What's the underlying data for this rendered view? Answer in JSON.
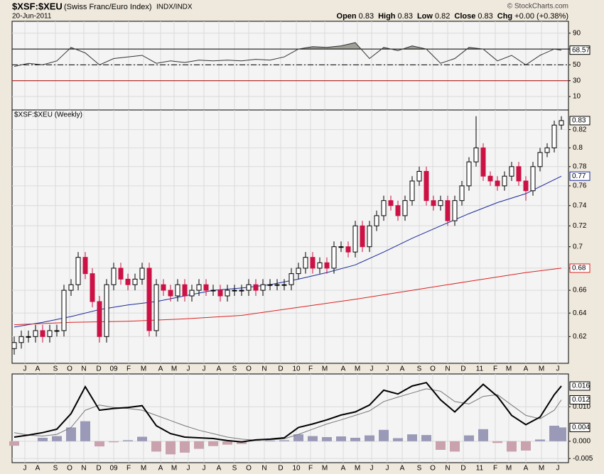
{
  "header": {
    "symbol": "$XSF:$XEU",
    "name": "(Swiss Franc/Euro Index)",
    "exchange": "INDX/INDX",
    "copyright": "© StockCharts.com",
    "date": "20-Jun-2011",
    "quote": [
      {
        "label": "Open",
        "value": "0.83"
      },
      {
        "label": "High",
        "value": "0.83"
      },
      {
        "label": "Low",
        "value": "0.82"
      },
      {
        "label": "Close",
        "value": "0.83"
      },
      {
        "label": "Chg",
        "value": "+0.00 (+0.38%)"
      }
    ]
  },
  "chart_data": [
    {
      "type": "line",
      "color": "#333333",
      "fill_color": "#8a8a80",
      "x": [
        0,
        2,
        4,
        6,
        8,
        10,
        12,
        14,
        16,
        18,
        20,
        22,
        24,
        26,
        28,
        30,
        32,
        34,
        36,
        38,
        40,
        42,
        44,
        46,
        48,
        50,
        52,
        54,
        56,
        58,
        60,
        62,
        64,
        66,
        68,
        70,
        72,
        74,
        76,
        77
      ],
      "values": [
        48,
        52,
        50,
        55,
        72,
        65,
        50,
        58,
        60,
        62,
        52,
        55,
        53,
        56,
        55,
        56,
        55,
        57,
        56,
        60,
        70,
        73,
        72,
        74,
        78,
        58,
        72,
        68,
        74,
        70,
        52,
        58,
        72,
        70,
        55,
        62,
        50,
        62,
        70,
        68.57
      ],
      "xlim": [
        -0.3,
        78
      ],
      "ylim": [
        -7,
        105
      ],
      "yticks": [
        10,
        30,
        50,
        70,
        90
      ],
      "levels": [
        {
          "value": 70,
          "color": "#000000",
          "style": "solid"
        },
        {
          "value": 50,
          "color": "#000000",
          "style": "dashdot"
        },
        {
          "value": 30,
          "color": "#aa0000",
          "style": "solid"
        }
      ]
    },
    {
      "type": "candlestick",
      "title": "$XSF:$XEU (Weekly)",
      "log_scale": true,
      "up_color": "#000000",
      "down_color": "#cc1144",
      "x": [
        0,
        1,
        2,
        3,
        4,
        5,
        6,
        7,
        8,
        9,
        10,
        11,
        12,
        13,
        14,
        15,
        16,
        17,
        18,
        19,
        20,
        21,
        22,
        23,
        24,
        25,
        26,
        27,
        28,
        29,
        30,
        31,
        32,
        33,
        34,
        35,
        36,
        37,
        38,
        39,
        40,
        41,
        42,
        43,
        44,
        45,
        46,
        47,
        48,
        49,
        50,
        51,
        52,
        53,
        54,
        55,
        56,
        57,
        58,
        59,
        60,
        61,
        62,
        63,
        64,
        65,
        66,
        67,
        68,
        69,
        70,
        71,
        72,
        73,
        74,
        75,
        76,
        77
      ],
      "open": [
        0.61,
        0.615,
        0.62,
        0.62,
        0.625,
        0.62,
        0.625,
        0.625,
        0.66,
        0.665,
        0.69,
        0.675,
        0.65,
        0.62,
        0.665,
        0.68,
        0.67,
        0.665,
        0.67,
        0.68,
        0.625,
        0.665,
        0.66,
        0.655,
        0.665,
        0.655,
        0.66,
        0.665,
        0.66,
        0.66,
        0.655,
        0.66,
        0.66,
        0.66,
        0.665,
        0.66,
        0.665,
        0.665,
        0.665,
        0.665,
        0.675,
        0.68,
        0.69,
        0.68,
        0.685,
        0.68,
        0.7,
        0.7,
        0.695,
        0.72,
        0.7,
        0.72,
        0.73,
        0.745,
        0.74,
        0.73,
        0.745,
        0.765,
        0.775,
        0.745,
        0.74,
        0.745,
        0.725,
        0.745,
        0.76,
        0.785,
        0.8,
        0.77,
        0.765,
        0.76,
        0.77,
        0.78,
        0.765,
        0.755,
        0.78,
        0.795,
        0.8,
        0.825
      ],
      "high": [
        0.62,
        0.625,
        0.625,
        0.63,
        0.63,
        0.63,
        0.63,
        0.665,
        0.67,
        0.695,
        0.695,
        0.68,
        0.655,
        0.67,
        0.685,
        0.685,
        0.675,
        0.675,
        0.685,
        0.685,
        0.67,
        0.67,
        0.665,
        0.67,
        0.67,
        0.665,
        0.67,
        0.67,
        0.665,
        0.665,
        0.665,
        0.665,
        0.665,
        0.67,
        0.67,
        0.67,
        0.67,
        0.67,
        0.67,
        0.68,
        0.685,
        0.695,
        0.695,
        0.69,
        0.69,
        0.705,
        0.705,
        0.705,
        0.725,
        0.725,
        0.725,
        0.735,
        0.75,
        0.75,
        0.745,
        0.75,
        0.77,
        0.78,
        0.78,
        0.75,
        0.75,
        0.75,
        0.75,
        0.765,
        0.79,
        0.835,
        0.805,
        0.775,
        0.77,
        0.775,
        0.785,
        0.785,
        0.77,
        0.785,
        0.8,
        0.805,
        0.83,
        0.835
      ],
      "low": [
        0.605,
        0.61,
        0.615,
        0.615,
        0.615,
        0.615,
        0.62,
        0.62,
        0.655,
        0.66,
        0.67,
        0.645,
        0.615,
        0.615,
        0.66,
        0.665,
        0.66,
        0.66,
        0.665,
        0.62,
        0.62,
        0.655,
        0.65,
        0.65,
        0.65,
        0.65,
        0.655,
        0.655,
        0.655,
        0.65,
        0.65,
        0.655,
        0.655,
        0.655,
        0.655,
        0.655,
        0.66,
        0.66,
        0.66,
        0.66,
        0.67,
        0.675,
        0.675,
        0.675,
        0.675,
        0.675,
        0.695,
        0.69,
        0.69,
        0.695,
        0.695,
        0.715,
        0.725,
        0.735,
        0.725,
        0.725,
        0.74,
        0.76,
        0.74,
        0.735,
        0.735,
        0.72,
        0.72,
        0.74,
        0.755,
        0.78,
        0.765,
        0.76,
        0.755,
        0.755,
        0.765,
        0.76,
        0.745,
        0.75,
        0.775,
        0.79,
        0.795,
        0.82
      ],
      "close": [
        0.615,
        0.62,
        0.62,
        0.625,
        0.62,
        0.625,
        0.625,
        0.66,
        0.665,
        0.69,
        0.675,
        0.65,
        0.62,
        0.665,
        0.68,
        0.67,
        0.665,
        0.67,
        0.68,
        0.625,
        0.665,
        0.66,
        0.655,
        0.665,
        0.655,
        0.66,
        0.665,
        0.66,
        0.66,
        0.655,
        0.66,
        0.66,
        0.66,
        0.665,
        0.66,
        0.665,
        0.665,
        0.665,
        0.665,
        0.675,
        0.68,
        0.69,
        0.68,
        0.685,
        0.68,
        0.7,
        0.7,
        0.695,
        0.72,
        0.7,
        0.72,
        0.73,
        0.745,
        0.74,
        0.73,
        0.745,
        0.765,
        0.775,
        0.745,
        0.74,
        0.745,
        0.725,
        0.745,
        0.76,
        0.785,
        0.8,
        0.77,
        0.765,
        0.76,
        0.77,
        0.78,
        0.765,
        0.755,
        0.78,
        0.795,
        0.8,
        0.825,
        0.83
      ],
      "series": [
        {
          "color": "#1a2a9a",
          "x": [
            0,
            4,
            8,
            12,
            16,
            20,
            24,
            28,
            32,
            36,
            40,
            44,
            48,
            52,
            56,
            60,
            64,
            68,
            72,
            77
          ],
          "values": [
            0.628,
            0.632,
            0.637,
            0.643,
            0.647,
            0.65,
            0.655,
            0.66,
            0.662,
            0.665,
            0.67,
            0.676,
            0.683,
            0.695,
            0.708,
            0.72,
            0.732,
            0.743,
            0.752,
            0.77
          ]
        },
        {
          "color": "#dd2222",
          "x": [
            0,
            8,
            16,
            24,
            32,
            40,
            48,
            56,
            64,
            72,
            77
          ],
          "values": [
            0.63,
            0.632,
            0.633,
            0.635,
            0.638,
            0.645,
            0.652,
            0.66,
            0.668,
            0.676,
            0.68
          ]
        }
      ],
      "xlim": [
        -0.3,
        78
      ],
      "ylim": [
        0.598,
        0.842
      ],
      "yticks": [
        0.62,
        0.64,
        0.66,
        0.68,
        0.7,
        0.72,
        0.74,
        0.76,
        0.78,
        0.8,
        0.82
      ],
      "xticks": [
        {
          "value": 1.5,
          "label": "J"
        },
        {
          "value": 3.3,
          "label": "A"
        },
        {
          "value": 5.8,
          "label": "S"
        },
        {
          "value": 7.8,
          "label": "O"
        },
        {
          "value": 9.8,
          "label": "N"
        },
        {
          "value": 11.9,
          "label": "D"
        },
        {
          "value": 14,
          "label": "09"
        },
        {
          "value": 16.1,
          "label": "F"
        },
        {
          "value": 18.2,
          "label": "M"
        },
        {
          "value": 20.6,
          "label": "A"
        },
        {
          "value": 22.5,
          "label": "M"
        },
        {
          "value": 24.5,
          "label": "J"
        },
        {
          "value": 26.7,
          "label": "J"
        },
        {
          "value": 28.8,
          "label": "A"
        },
        {
          "value": 31,
          "label": "S"
        },
        {
          "value": 33,
          "label": "O"
        },
        {
          "value": 35.2,
          "label": "N"
        },
        {
          "value": 37.5,
          "label": "D"
        },
        {
          "value": 39.7,
          "label": "10"
        },
        {
          "value": 41.7,
          "label": "F"
        },
        {
          "value": 43.7,
          "label": "M"
        },
        {
          "value": 46.3,
          "label": "A"
        },
        {
          "value": 48.3,
          "label": "M"
        },
        {
          "value": 50.3,
          "label": "J"
        },
        {
          "value": 52.5,
          "label": "J"
        },
        {
          "value": 54.6,
          "label": "A"
        },
        {
          "value": 57,
          "label": "S"
        },
        {
          "value": 58.9,
          "label": "O"
        },
        {
          "value": 61,
          "label": "N"
        },
        {
          "value": 63.2,
          "label": "D"
        },
        {
          "value": 65.5,
          "label": "11"
        },
        {
          "value": 67.7,
          "label": "F"
        },
        {
          "value": 69.6,
          "label": "M"
        },
        {
          "value": 72,
          "label": "A"
        },
        {
          "value": 74.2,
          "label": "M"
        },
        {
          "value": 76.5,
          "label": "J"
        }
      ]
    },
    {
      "type": "macd",
      "x": [
        0,
        2,
        4,
        6,
        8,
        10,
        12,
        14,
        16,
        18,
        20,
        22,
        24,
        26,
        28,
        30,
        32,
        34,
        36,
        38,
        40,
        42,
        44,
        46,
        48,
        50,
        52,
        54,
        56,
        58,
        60,
        62,
        64,
        66,
        68,
        70,
        72,
        74,
        76,
        77
      ],
      "macd": {
        "color": "#000000",
        "values": [
          0.0012,
          0.0018,
          0.0025,
          0.0035,
          0.008,
          0.0158,
          0.009,
          0.0095,
          0.0098,
          0.0103,
          0.0045,
          0.0022,
          0.0012,
          0.001,
          0.0008,
          0.0002,
          -0.0002,
          0.0004,
          0.0006,
          0.001,
          0.004,
          0.005,
          0.0062,
          0.0076,
          0.0085,
          0.0105,
          0.0148,
          0.0137,
          0.016,
          0.017,
          0.012,
          0.0085,
          0.0125,
          0.0165,
          0.013,
          0.0075,
          0.0048,
          0.007,
          0.0135,
          0.016
        ]
      },
      "signal": {
        "color": "#777777",
        "values": [
          0.0025,
          0.0018,
          0.0015,
          0.002,
          0.004,
          0.009,
          0.0105,
          0.0098,
          0.0095,
          0.009,
          0.0075,
          0.006,
          0.0045,
          0.0032,
          0.0022,
          0.0012,
          0.0006,
          0.0003,
          0.0004,
          0.0007,
          0.002,
          0.0035,
          0.005,
          0.0062,
          0.0075,
          0.0088,
          0.0115,
          0.0128,
          0.014,
          0.0152,
          0.0145,
          0.0115,
          0.0108,
          0.013,
          0.0135,
          0.0105,
          0.0075,
          0.0065,
          0.009,
          0.012
        ]
      },
      "histogram": {
        "up_color": "#9a9ab8",
        "down_color": "#c9a2ad",
        "values": [
          -0.0013,
          0,
          0.001,
          0.0015,
          0.004,
          0.0058,
          -0.0015,
          -0.0003,
          0.0003,
          0.0013,
          -0.003,
          -0.0038,
          -0.0033,
          -0.0022,
          -0.0014,
          -0.001,
          -0.0008,
          0.0001,
          0.0002,
          0.0003,
          0.002,
          0.0015,
          0.0012,
          0.0014,
          0.001,
          0.0017,
          0.0033,
          0.0009,
          0.002,
          0.0018,
          -0.0025,
          -0.003,
          0.0017,
          0.0035,
          -0.0005,
          -0.003,
          -0.0027,
          0.0005,
          0.0045,
          0.004
        ]
      },
      "xlim": [
        -0.3,
        78
      ],
      "ylim": [
        -0.0062,
        0.0195
      ],
      "yticks": [
        {
          "value": 0.01,
          "label": "0.010"
        },
        {
          "value": 0,
          "label": "0.000"
        },
        -0.005
      ]
    }
  ]
}
